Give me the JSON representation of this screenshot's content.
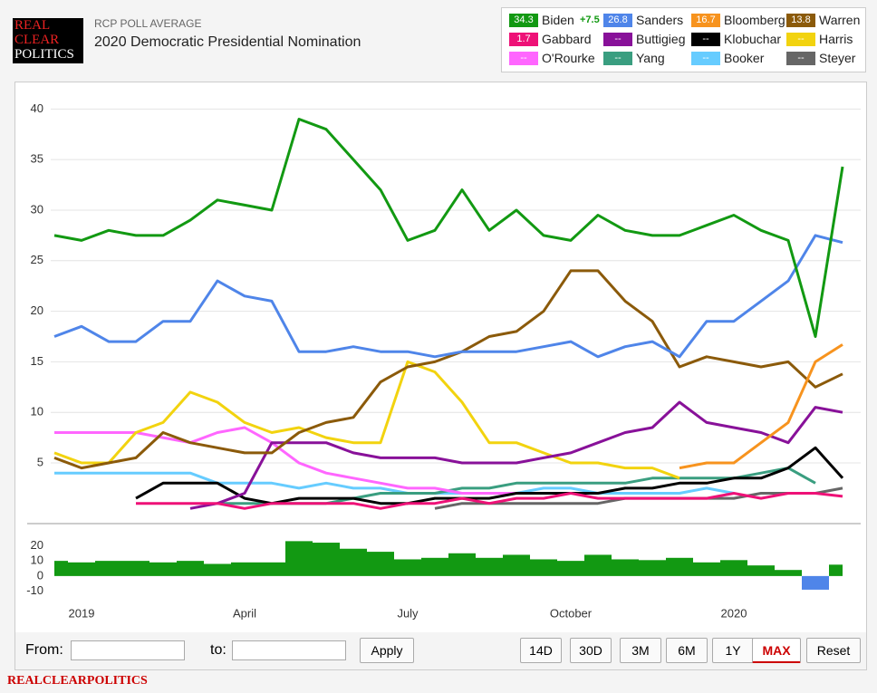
{
  "header": {
    "logo": [
      "REAL",
      "CLEAR",
      "POLITICS"
    ],
    "kicker": "RCP POLL AVERAGE"
  },
  "chart_data": [
    {
      "type": "line",
      "title": "2020 Democratic Presidential Nomination",
      "categories": [
        null,
        "2019",
        null,
        null,
        null,
        null,
        null,
        "April",
        null,
        null,
        null,
        null,
        null,
        "July",
        null,
        null,
        null,
        null,
        null,
        "October",
        null,
        null,
        null,
        null,
        null,
        "2020",
        null,
        null,
        null,
        null
      ],
      "ylim": [
        -1,
        42
      ],
      "yticks": [
        5,
        10,
        15,
        20,
        25,
        30,
        35,
        40
      ],
      "grid": true,
      "series": [
        {
          "name": "Biden",
          "color": "#129912",
          "latest": 34.3,
          "change": {
            "value": 7.5,
            "label": "+7.5"
          },
          "values": [
            27.5,
            27,
            28,
            27.5,
            27.5,
            29,
            31,
            30.5,
            30,
            39,
            38,
            35,
            32,
            27,
            28,
            32,
            28,
            30,
            27.5,
            27,
            29.5,
            28,
            27.5,
            27.5,
            28.5,
            29.5,
            28,
            27,
            17.5,
            34.3
          ]
        },
        {
          "name": "Sanders",
          "color": "#4f85e9",
          "latest": 26.8,
          "values": [
            17.5,
            18.5,
            17,
            17,
            19,
            19,
            23,
            21.5,
            21,
            16,
            16,
            16.5,
            16,
            16,
            15.5,
            16,
            16,
            16,
            16.5,
            17,
            15.5,
            16.5,
            17,
            15.5,
            19,
            19,
            21,
            23,
            27.5,
            26.8
          ]
        },
        {
          "name": "Bloomberg",
          "color": "#f7931e",
          "latest": 16.7,
          "values": [
            null,
            null,
            null,
            null,
            null,
            null,
            null,
            null,
            null,
            null,
            null,
            null,
            null,
            null,
            null,
            null,
            null,
            null,
            null,
            null,
            null,
            null,
            null,
            4.5,
            5,
            5,
            7,
            9,
            15,
            16.7
          ]
        },
        {
          "name": "Warren",
          "color": "#8b5a0a",
          "latest": 13.8,
          "values": [
            5.5,
            4.5,
            5,
            5.5,
            8,
            7,
            6.5,
            6,
            6,
            8,
            9,
            9.5,
            13,
            14.5,
            15,
            16,
            17.5,
            18,
            20,
            24,
            24,
            21,
            19,
            14.5,
            15.5,
            15,
            14.5,
            15,
            12.5,
            13.8
          ]
        },
        {
          "name": "Gabbard",
          "color": "#ee1177",
          "latest": 1.7,
          "values": [
            null,
            null,
            null,
            1,
            1,
            1,
            1,
            0.5,
            1,
            1,
            1,
            1,
            0.5,
            1,
            1,
            1.5,
            1,
            1.5,
            1.5,
            2,
            1.5,
            1.5,
            1.5,
            1.5,
            1.5,
            2,
            1.5,
            2,
            2,
            1.7
          ]
        },
        {
          "name": "Buttigieg",
          "color": "#881199",
          "latest": "--",
          "values": [
            null,
            null,
            null,
            null,
            null,
            0.5,
            1,
            2,
            7,
            7,
            7,
            6,
            5.5,
            5.5,
            5.5,
            5,
            5,
            5,
            5.5,
            6,
            7,
            8,
            8.5,
            11,
            9,
            8.5,
            8,
            7,
            10.5,
            10
          ]
        },
        {
          "name": "Klobuchar",
          "color": "#000000",
          "latest": "--",
          "values": [
            null,
            null,
            null,
            1.5,
            3,
            3,
            3,
            1.5,
            1,
            1.5,
            1.5,
            1.5,
            1,
            1,
            1.5,
            1.5,
            1.5,
            2,
            2,
            2,
            2,
            2.5,
            2.5,
            3,
            3,
            3.5,
            3.5,
            4.5,
            6.5,
            3.5
          ]
        },
        {
          "name": "Harris",
          "color": "#f2d30f",
          "latest": "--",
          "values": [
            6,
            5,
            5,
            8,
            9,
            12,
            11,
            9,
            8,
            8.5,
            7.5,
            7,
            7,
            15,
            14,
            11,
            7,
            7,
            6,
            5,
            5,
            4.5,
            4.5,
            3.5,
            null,
            null,
            null,
            null,
            null,
            null
          ]
        },
        {
          "name": "O'Rourke",
          "color": "#ff66ff",
          "latest": "--",
          "values": [
            8,
            8,
            8,
            8,
            7.5,
            7,
            8,
            8.5,
            7,
            5,
            4,
            3.5,
            3,
            2.5,
            2.5,
            2,
            2,
            2,
            2,
            2,
            null,
            null,
            null,
            null,
            null,
            null,
            null,
            null,
            null,
            null
          ]
        },
        {
          "name": "Yang",
          "color": "#3a9e80",
          "latest": "--",
          "values": [
            null,
            null,
            null,
            null,
            null,
            null,
            1,
            1,
            1,
            1,
            1,
            1.5,
            2,
            2,
            2,
            2.5,
            2.5,
            3,
            3,
            3,
            3,
            3,
            3.5,
            3.5,
            3.5,
            3.5,
            4,
            4.5,
            3,
            null
          ]
        },
        {
          "name": "Booker",
          "color": "#66ccff",
          "latest": "--",
          "values": [
            4,
            4,
            4,
            4,
            4,
            4,
            3,
            3,
            3,
            2.5,
            3,
            2.5,
            2.5,
            2,
            2,
            2,
            2,
            2,
            2.5,
            2.5,
            2,
            2,
            2,
            2,
            2.5,
            2,
            null,
            null,
            null,
            null
          ]
        },
        {
          "name": "Steyer",
          "color": "#666666",
          "latest": "--",
          "values": [
            null,
            null,
            null,
            null,
            null,
            null,
            null,
            null,
            null,
            null,
            null,
            null,
            null,
            null,
            0.5,
            1,
            1,
            1,
            1,
            1,
            1,
            1.5,
            1.5,
            1.5,
            1.5,
            1.5,
            2,
            2,
            2,
            2.5
          ]
        }
      ]
    },
    {
      "type": "area",
      "positive_color": "#129912",
      "negative_color": "#4f85e9",
      "ylim": [
        -15,
        28
      ],
      "yticks": [
        20,
        10,
        0,
        -10
      ],
      "values": [
        10,
        9,
        10,
        10,
        9,
        10,
        8,
        9,
        9,
        23,
        22,
        18,
        16,
        11,
        12,
        15,
        12,
        14,
        11,
        10,
        14,
        11,
        10.5,
        12,
        9,
        10.5,
        7,
        4,
        -9,
        7.5
      ]
    }
  ],
  "controls": {
    "from": "From:",
    "to": "to:",
    "apply": "Apply",
    "ranges": [
      "14D",
      "30D",
      "3M",
      "6M",
      "1Y",
      "MAX"
    ],
    "reset": "Reset"
  },
  "footer": "REALCLEARPOLITICS"
}
